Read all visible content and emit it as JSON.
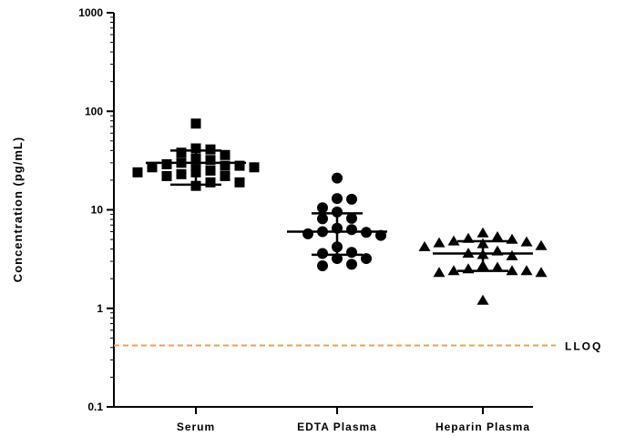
{
  "chart_data": {
    "type": "scatter",
    "ylabel": "Concentration (pg/mL)",
    "yscale": "log",
    "ylim": [
      0.1,
      1000
    ],
    "yticks": [
      {
        "value": 0.1,
        "label": "0.1"
      },
      {
        "value": 1,
        "label": "1"
      },
      {
        "value": 10,
        "label": "10"
      },
      {
        "value": 100,
        "label": "100"
      },
      {
        "value": 1000,
        "label": "1000"
      }
    ],
    "categories": [
      "Serum",
      "EDTA Plasma",
      "Heparin Plasma"
    ],
    "series": [
      {
        "category": "Serum",
        "marker": "square",
        "values": [
          75,
          42,
          41,
          38,
          36,
          33,
          32,
          30,
          29,
          28,
          28,
          27,
          27,
          26,
          25,
          24,
          24,
          23,
          22,
          22,
          19,
          19,
          17.5
        ],
        "mean": 30,
        "sd_upper": 40,
        "sd_lower": 18
      },
      {
        "category": "EDTA Plasma",
        "marker": "circle",
        "values": [
          21,
          13,
          12.8,
          10.5,
          9.5,
          8.2,
          8.1,
          6.5,
          6.3,
          6,
          5.9,
          5.7,
          5.5,
          4.2,
          3.7,
          3.6,
          3.2,
          3.2,
          2.8,
          2.7
        ],
        "mean": 6,
        "sd_upper": 9.2,
        "sd_lower": 3.5
      },
      {
        "category": "Heparin Plasma",
        "marker": "triangle",
        "values": [
          5.8,
          5.3,
          5.1,
          5,
          4.8,
          4.7,
          4.6,
          4.5,
          4.3,
          4.2,
          3.8,
          3.6,
          3.5,
          3.4,
          2.7,
          2.6,
          2.5,
          2.4,
          2.4,
          2.4,
          2.3,
          2.3,
          1.2
        ],
        "mean": 3.6,
        "sd_upper": 4.8,
        "sd_lower": 2.4
      }
    ],
    "reference_line": {
      "label": "LLOQ",
      "value": 0.42,
      "color": "#f0a050",
      "style": "dashed"
    },
    "grid": false,
    "marker_color": "#000000"
  }
}
